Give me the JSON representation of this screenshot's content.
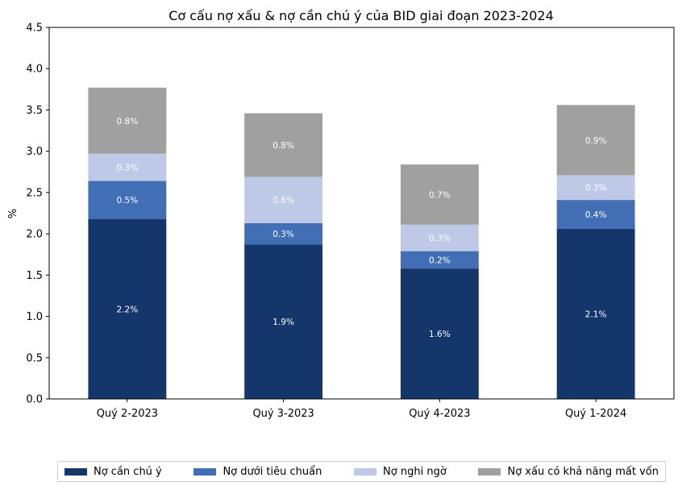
{
  "chart_data": {
    "type": "bar",
    "stacked": true,
    "title": "Cơ cấu nợ xấu & nợ cần chú ý của BID giai đoạn 2023-2024",
    "xlabel": "",
    "ylabel": "%",
    "ylim": [
      0,
      4.5
    ],
    "yticks": [
      "0.0",
      "0.5",
      "1.0",
      "1.5",
      "2.0",
      "2.5",
      "3.0",
      "3.5",
      "4.0",
      "4.5"
    ],
    "categories": [
      "Quý 2-2023",
      "Quý 3-2023",
      "Quý 4-2023",
      "Quý 1-2024"
    ],
    "series": [
      {
        "name": "Nợ cần chú ý",
        "color": "#14366a",
        "values": [
          2.18,
          1.87,
          1.58,
          2.06
        ],
        "labels": [
          "2.2%",
          "1.9%",
          "1.6%",
          "2.1%"
        ]
      },
      {
        "name": "Nợ dưới tiêu chuẩn",
        "color": "#416eb5",
        "values": [
          0.46,
          0.26,
          0.21,
          0.35
        ],
        "labels": [
          "0.5%",
          "0.3%",
          "0.2%",
          "0.4%"
        ]
      },
      {
        "name": "Nợ nghi ngờ",
        "color": "#bdc9e6",
        "values": [
          0.33,
          0.56,
          0.32,
          0.3
        ],
        "labels": [
          "0.3%",
          "0.6%",
          "0.3%",
          "0.3%"
        ]
      },
      {
        "name": "Nợ xấu có khả năng mất vốn",
        "color": "#a0a0a0",
        "values": [
          0.8,
          0.77,
          0.73,
          0.85
        ],
        "labels": [
          "0.8%",
          "0.8%",
          "0.7%",
          "0.9%"
        ]
      }
    ],
    "legend_position": "bottom-center",
    "grid": false
  }
}
